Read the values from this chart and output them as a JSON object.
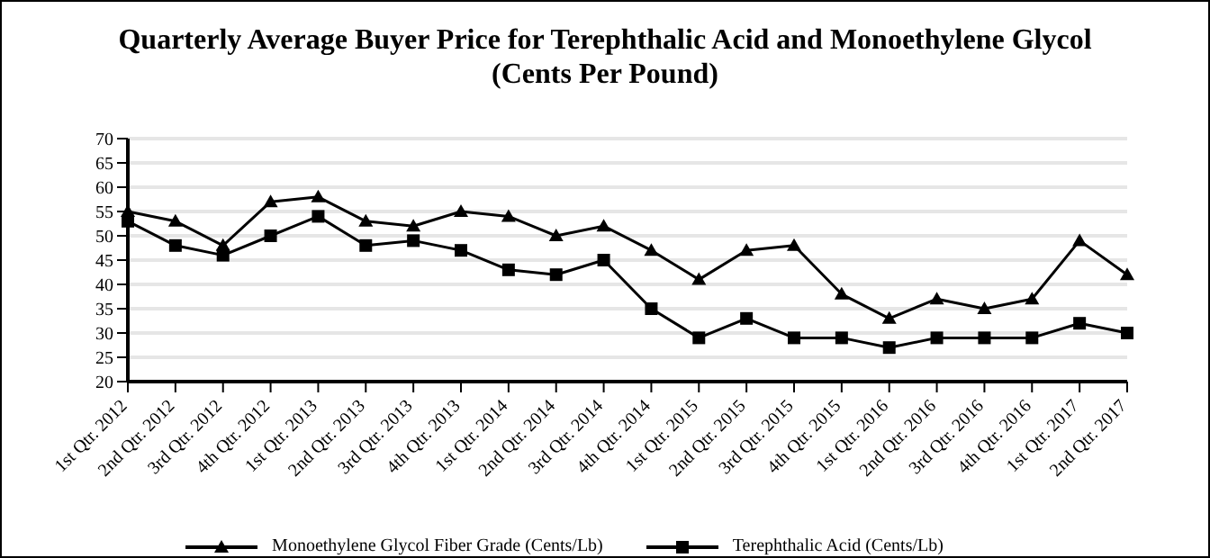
{
  "chart_data": {
    "type": "line",
    "title": "Quarterly Average Buyer Price for Terephthalic Acid and Monoethylene Glycol\n(Cents Per Pound)",
    "categories": [
      "1st Qtr. 2012",
      "2nd Qtr. 2012",
      "3rd Qtr. 2012",
      "4th Qtr. 2012",
      "1st Qtr. 2013",
      "2nd Qtr. 2013",
      "3rd Qtr. 2013",
      "4th Qtr. 2013",
      "1st Qtr. 2014",
      "2nd Qtr. 2014",
      "3rd Qtr. 2014",
      "4th Qtr. 2014",
      "1st Qtr. 2015",
      "2nd Qtr. 2015",
      "3rd Qtr. 2015",
      "4th Qtr. 2015",
      "1st Qtr. 2016",
      "2nd Qtr. 2016",
      "3rd Qtr. 2016",
      "4th Qtr. 2016",
      "1st Qtr. 2017",
      "2nd Qtr. 2017"
    ],
    "series": [
      {
        "name": "Monoethylene Glycol Fiber Grade (Cents/Lb)",
        "color": "#000000",
        "marker": "triangle",
        "values": [
          55,
          53,
          48,
          57,
          58,
          53,
          52,
          55,
          54,
          50,
          52,
          47,
          41,
          47,
          48,
          38,
          33,
          37,
          35,
          37,
          49,
          42
        ]
      },
      {
        "name": "Terephthalic Acid (Cents/Lb)",
        "color": "#000000",
        "marker": "square",
        "values": [
          53,
          48,
          46,
          50,
          54,
          48,
          49,
          47,
          43,
          42,
          45,
          35,
          29,
          33,
          29,
          29,
          27,
          29,
          29,
          29,
          32,
          30
        ]
      }
    ],
    "ylim": [
      20,
      70
    ],
    "yticks": [
      20,
      25,
      30,
      35,
      40,
      45,
      50,
      55,
      60,
      65,
      70
    ],
    "grid": "y",
    "legend": "bottom"
  }
}
